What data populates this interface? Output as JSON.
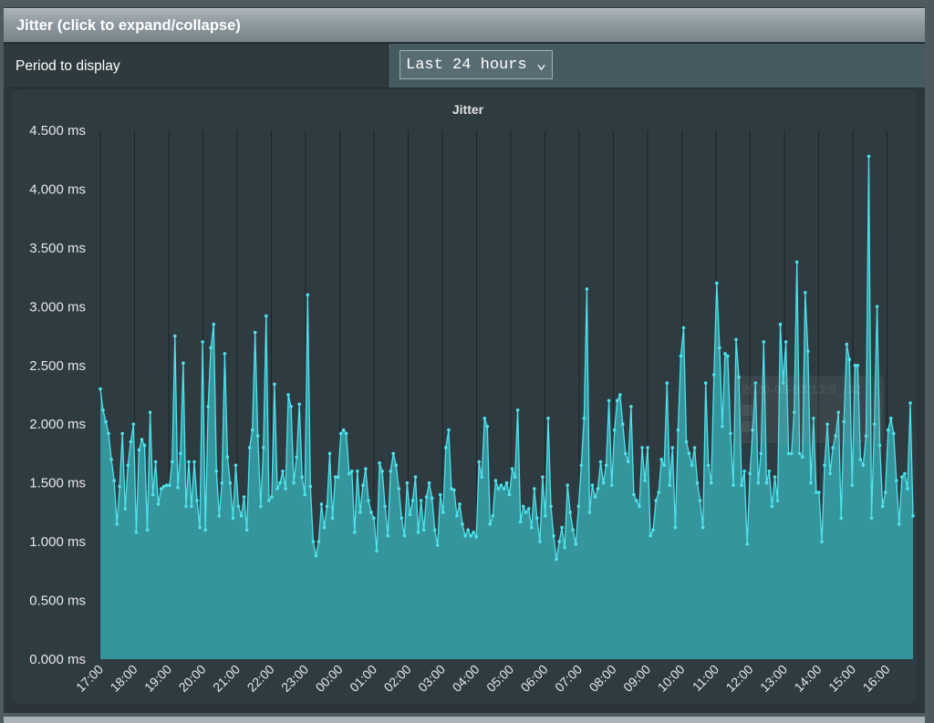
{
  "header": {
    "title": "Jitter (click to expand/collapse)"
  },
  "period": {
    "label": "Period to display",
    "selected": "Last 24 hours"
  },
  "tooltip_ghost": {
    "text": "2020-08-03 13:5_:32"
  },
  "colors": {
    "line": "#4fe3ee",
    "fill": "#35959c",
    "grid": "#1c2428",
    "text": "#e8e8e8"
  },
  "chart_data": {
    "type": "area",
    "title": "Jitter",
    "ylim": [
      0,
      4.5
    ],
    "y_ticks": [
      "0.000 ms",
      "0.500 ms",
      "1.000 ms",
      "1.500 ms",
      "2.000 ms",
      "2.500 ms",
      "3.000 ms",
      "3.500 ms",
      "4.000 ms",
      "4.500 ms"
    ],
    "x_ticks": [
      "17:00",
      "18:00",
      "19:00",
      "20:00",
      "21:00",
      "22:00",
      "23:00",
      "00:00",
      "01:00",
      "02:00",
      "03:00",
      "04:00",
      "05:00",
      "06:00",
      "07:00",
      "08:00",
      "09:00",
      "10:00",
      "11:00",
      "12:00",
      "13:00",
      "14:00",
      "15:00",
      "16:00"
    ],
    "x_start_hour": 17,
    "x_span_hours": 23.8,
    "grid": true,
    "values": [
      2.3,
      2.12,
      2.02,
      1.92,
      1.7,
      1.52,
      1.15,
      1.47,
      1.92,
      1.28,
      1.65,
      1.85,
      2.0,
      1.08,
      1.78,
      1.87,
      1.82,
      1.1,
      2.1,
      1.4,
      1.68,
      1.32,
      1.45,
      1.47,
      1.48,
      1.48,
      1.68,
      2.75,
      1.46,
      1.75,
      2.52,
      1.3,
      1.68,
      1.3,
      1.68,
      1.35,
      1.12,
      2.7,
      1.1,
      2.15,
      2.65,
      2.85,
      1.6,
      1.22,
      1.5,
      2.6,
      1.72,
      1.5,
      1.2,
      1.65,
      1.3,
      1.22,
      1.38,
      1.1,
      1.8,
      1.95,
      2.78,
      1.9,
      1.3,
      1.8,
      2.92,
      1.35,
      1.38,
      2.34,
      1.45,
      1.5,
      1.6,
      1.45,
      2.25,
      2.15,
      1.5,
      1.72,
      2.17,
      1.55,
      1.4,
      3.1,
      1.47,
      1.0,
      0.88,
      1.0,
      1.32,
      1.12,
      1.3,
      1.75,
      1.2,
      1.55,
      1.55,
      1.92,
      1.95,
      1.92,
      1.58,
      1.6,
      1.08,
      1.6,
      1.25,
      1.48,
      1.62,
      1.35,
      1.25,
      1.2,
      0.92,
      1.67,
      1.6,
      1.3,
      1.05,
      1.6,
      1.75,
      1.65,
      1.45,
      1.2,
      1.05,
      1.5,
      1.23,
      1.35,
      1.55,
      1.08,
      1.35,
      1.1,
      1.38,
      1.5,
      1.37,
      1.1,
      0.97,
      1.4,
      1.25,
      1.8,
      1.95,
      1.45,
      1.44,
      1.22,
      1.32,
      1.15,
      1.05,
      1.1,
      1.05,
      1.08,
      1.04,
      1.68,
      1.55,
      2.05,
      1.98,
      1.15,
      1.22,
      1.52,
      1.45,
      1.48,
      1.45,
      1.5,
      1.4,
      1.62,
      1.55,
      2.12,
      1.17,
      1.3,
      1.25,
      1.28,
      1.12,
      1.45,
      1.2,
      1.0,
      1.55,
      1.22,
      2.05,
      1.3,
      1.05,
      0.85,
      1.0,
      1.12,
      0.95,
      1.48,
      1.25,
      1.1,
      0.98,
      1.3,
      1.65,
      2.05,
      3.15,
      1.25,
      1.48,
      1.38,
      1.45,
      1.68,
      1.5,
      1.65,
      2.2,
      1.48,
      1.95,
      2.2,
      2.25,
      2.0,
      1.75,
      1.68,
      2.15,
      1.4,
      1.35,
      1.3,
      1.8,
      1.52,
      1.8,
      1.05,
      1.1,
      1.35,
      1.42,
      1.7,
      1.65,
      2.35,
      1.48,
      1.8,
      1.12,
      1.95,
      2.58,
      2.82,
      1.85,
      1.75,
      1.65,
      1.8,
      1.5,
      1.35,
      1.12,
      2.35,
      1.65,
      1.5,
      2.42,
      3.2,
      2.65,
      1.98,
      2.6,
      2.58,
      1.92,
      1.48,
      2.72,
      2.4,
      1.48,
      1.6,
      0.98,
      1.58,
      1.95,
      2.35,
      1.5,
      1.75,
      2.7,
      1.5,
      1.6,
      1.3,
      1.55,
      1.35,
      2.85,
      2.35,
      2.7,
      1.75,
      1.75,
      2.1,
      3.38,
      1.75,
      1.72,
      3.12,
      2.62,
      1.5,
      2.05,
      1.42,
      1.42,
      1.0,
      1.65,
      2.0,
      1.58,
      1.8,
      1.9,
      2.1,
      1.2,
      2.02,
      2.68,
      2.55,
      1.48,
      2.5,
      2.5,
      1.7,
      1.65,
      1.9,
      4.28,
      1.2,
      2.0,
      3.0,
      1.82,
      1.3,
      1.42,
      1.95,
      2.05,
      1.92,
      1.52,
      1.15,
      1.55,
      1.58,
      1.45,
      2.18,
      1.22
    ]
  }
}
